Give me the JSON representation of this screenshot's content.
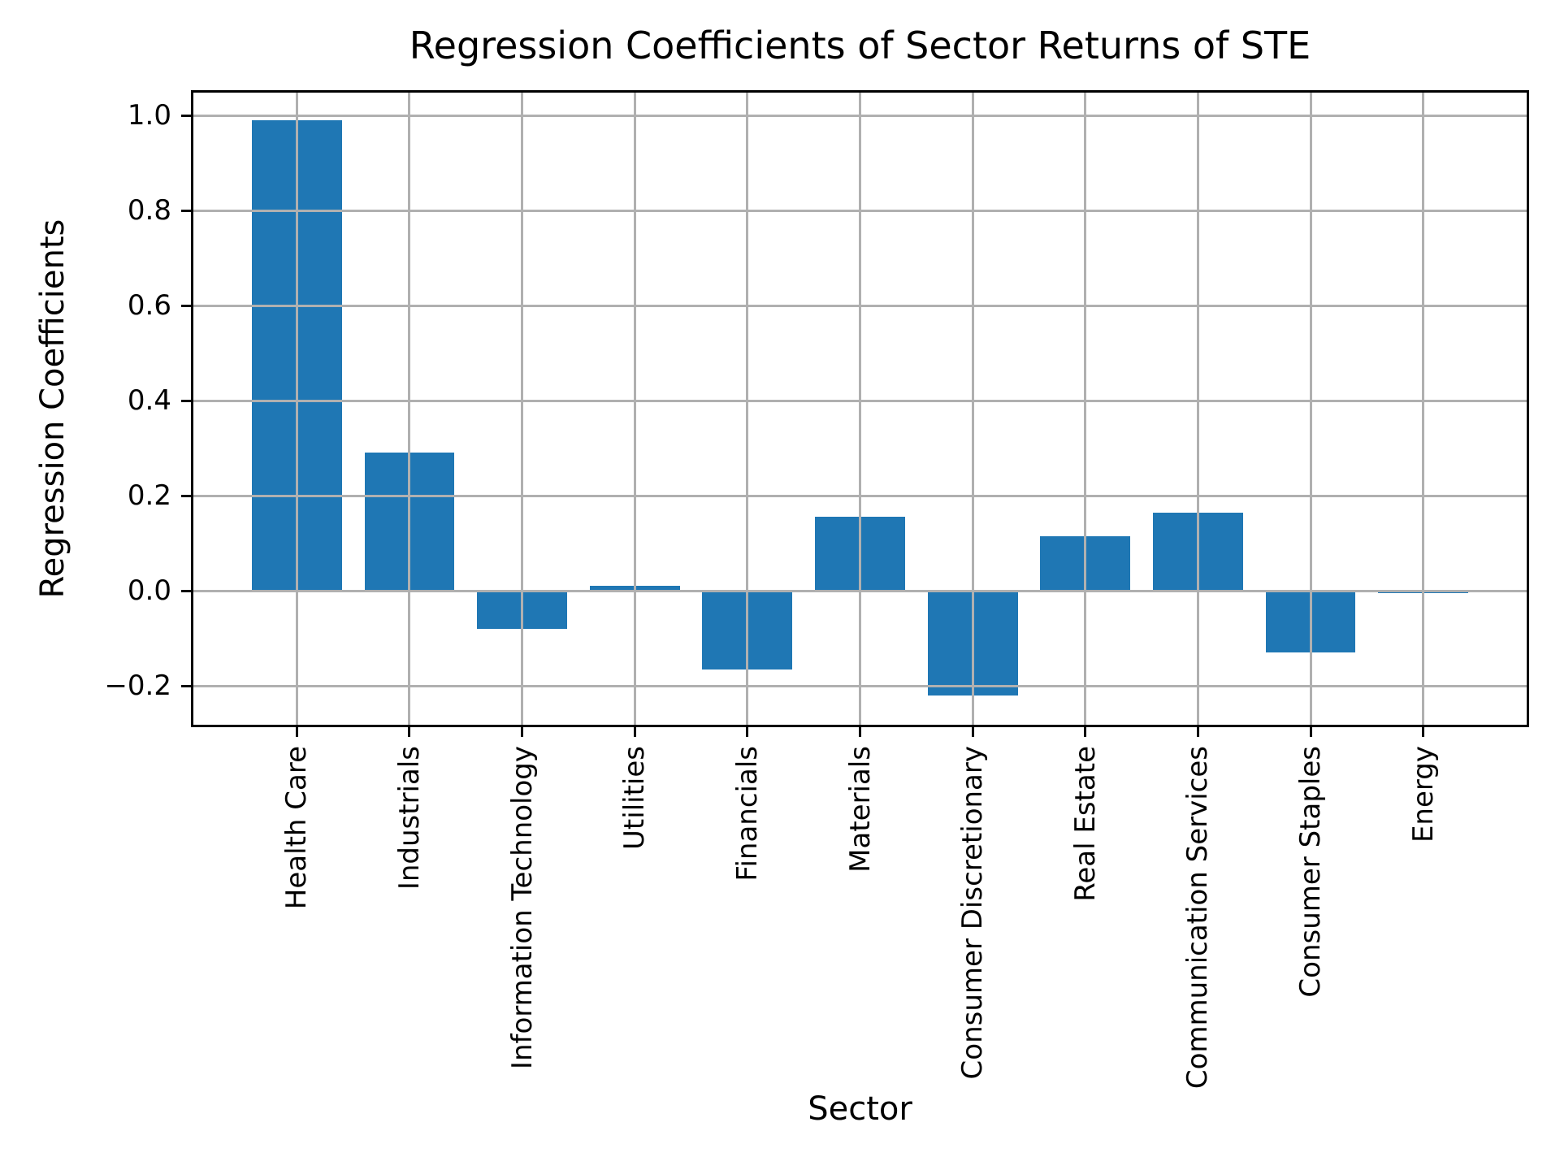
{
  "chart_data": {
    "type": "bar",
    "title": "Regression Coefficients of Sector Returns of STE",
    "xlabel": "Sector",
    "ylabel": "Regression Coefficients",
    "categories": [
      "Health Care",
      "Industrials",
      "Information Technology",
      "Utilities",
      "Financials",
      "Materials",
      "Consumer Discretionary",
      "Real Estate",
      "Communication Services",
      "Consumer Staples",
      "Energy"
    ],
    "values": [
      0.99,
      0.29,
      -0.08,
      0.01,
      -0.165,
      0.155,
      -0.22,
      0.115,
      0.165,
      -0.13,
      -0.005
    ],
    "yticks": [
      1.0,
      0.8,
      0.6,
      0.4,
      0.2,
      0.0,
      -0.2
    ],
    "ytick_labels": [
      "1.0",
      "0.8",
      "0.6",
      "0.4",
      "0.2",
      "0.0",
      "−0.2"
    ],
    "ylim": [
      -0.287,
      1.053
    ],
    "xlim_units": [
      -0.94,
      10.94
    ],
    "bar_width_units": 0.8,
    "grid": true,
    "legend": "none",
    "colors": {
      "bar": "#1f77b4",
      "grid": "#b0b0b0",
      "spine": "#000000",
      "text": "#000000",
      "background": "#ffffff"
    }
  }
}
